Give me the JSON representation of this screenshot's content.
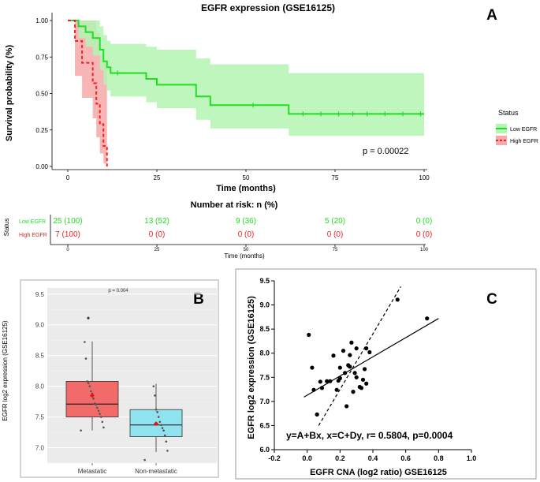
{
  "colors": {
    "low": "#22dd22",
    "low_fill": "#b3f5b3",
    "high": "#ee2222",
    "high_fill": "#f7a8a8",
    "box_meta": "#f26b6b",
    "box_nonmeta": "#8fe3ee",
    "mean_marker": "#ee1111"
  },
  "chart_data": [
    {
      "panel": "A",
      "type": "line",
      "subtype": "kaplan-meier",
      "title": "EGFR expression (GSE16125)",
      "xlabel": "Time (months)",
      "ylabel": "Survival probability (%)",
      "xlim": [
        0,
        100
      ],
      "ylim": [
        0,
        1
      ],
      "xticks": [
        "0",
        "25",
        "50",
        "75",
        "100"
      ],
      "yticks": [
        "0.00",
        "0.25",
        "0.50",
        "0.75",
        "1.00"
      ],
      "legend_title": "Status",
      "pvalue": "p = 0.00022",
      "series": [
        {
          "name": "Low EGFR",
          "color_key": "low",
          "steps": [
            [
              0,
              1.0
            ],
            [
              3,
              0.96
            ],
            [
              5,
              0.92
            ],
            [
              7,
              0.88
            ],
            [
              9,
              0.8
            ],
            [
              10,
              0.72
            ],
            [
              11,
              0.68
            ],
            [
              12,
              0.64
            ],
            [
              22,
              0.6
            ],
            [
              25,
              0.56
            ],
            [
              36,
              0.48
            ],
            [
              40,
              0.42
            ],
            [
              62,
              0.36
            ],
            [
              100,
              0.36
            ]
          ],
          "ci_upper": [
            [
              0,
              1.0
            ],
            [
              3,
              1.0
            ],
            [
              5,
              1.0
            ],
            [
              7,
              1.0
            ],
            [
              9,
              0.96
            ],
            [
              10,
              0.9
            ],
            [
              11,
              0.86
            ],
            [
              12,
              0.84
            ],
            [
              22,
              0.82
            ],
            [
              25,
              0.8
            ],
            [
              36,
              0.74
            ],
            [
              40,
              0.7
            ],
            [
              62,
              0.64
            ],
            [
              100,
              0.64
            ]
          ],
          "ci_lower": [
            [
              0,
              1.0
            ],
            [
              3,
              0.88
            ],
            [
              5,
              0.82
            ],
            [
              7,
              0.76
            ],
            [
              9,
              0.66
            ],
            [
              10,
              0.56
            ],
            [
              11,
              0.52
            ],
            [
              12,
              0.48
            ],
            [
              22,
              0.44
            ],
            [
              25,
              0.4
            ],
            [
              36,
              0.32
            ],
            [
              40,
              0.26
            ],
            [
              62,
              0.21
            ],
            [
              100,
              0.21
            ]
          ],
          "censor_times": [
            14,
            52,
            66,
            71,
            76,
            80,
            84,
            89,
            94,
            99
          ]
        },
        {
          "name": "High EGFR",
          "color_key": "high",
          "steps": [
            [
              0,
              1.0
            ],
            [
              2,
              0.86
            ],
            [
              4,
              0.71
            ],
            [
              7,
              0.57
            ],
            [
              8,
              0.43
            ],
            [
              9,
              0.29
            ],
            [
              10,
              0.14
            ],
            [
              11,
              0.0
            ]
          ],
          "ci_upper": [
            [
              0,
              1.0
            ],
            [
              2,
              1.0
            ],
            [
              4,
              1.0
            ],
            [
              7,
              1.0
            ],
            [
              8,
              0.91
            ],
            [
              9,
              0.76
            ],
            [
              10,
              0.71
            ],
            [
              11,
              0.71
            ]
          ],
          "ci_lower": [
            [
              0,
              1.0
            ],
            [
              2,
              0.62
            ],
            [
              4,
              0.47
            ],
            [
              7,
              0.33
            ],
            [
              8,
              0.2
            ],
            [
              9,
              0.09
            ],
            [
              10,
              0.02
            ],
            [
              11,
              0.0
            ]
          ],
          "censor_times": []
        }
      ]
    },
    {
      "panel": "A-risk",
      "type": "table",
      "title": "Number at risk: n (%)",
      "ylabel": "Status",
      "xlabel": "Time (months)",
      "times": [
        "0",
        "25",
        "50",
        "75",
        "100"
      ],
      "rows": [
        {
          "label": "Low EGFR",
          "color_key": "low",
          "values": [
            "25 (100)",
            "13 (52)",
            "9 (36)",
            "5 (20)",
            "0 (0)"
          ]
        },
        {
          "label": "High EGFR",
          "color_key": "high",
          "values": [
            "7 (100)",
            "0 (0)",
            "0 (0)",
            "0 (0)",
            "0 (0)"
          ]
        }
      ]
    },
    {
      "panel": "B",
      "type": "box",
      "ylabel": "EGFR log2 expression (GSE16125)",
      "pvalue": "p = 0.004",
      "ylim": [
        6.75,
        9.6
      ],
      "yticks": [
        "7.0",
        "7.5",
        "8.0",
        "8.5",
        "9.0",
        "9.5"
      ],
      "groups": [
        {
          "name": "Metastatic",
          "color_key": "box_meta",
          "q1": 7.5,
          "median": 7.71,
          "q3": 8.08,
          "whisker_low": 7.28,
          "whisker_high": 8.73,
          "mean": 7.85,
          "outliers": [
            9.11
          ],
          "points": [
            7.28,
            7.33,
            7.42,
            7.5,
            7.55,
            7.6,
            7.65,
            7.7,
            7.72,
            7.8,
            7.88,
            7.92,
            8.0,
            8.05,
            8.08,
            8.45,
            8.72
          ]
        },
        {
          "name": "Non-metastatic",
          "color_key": "box_nonmeta",
          "q1": 7.18,
          "median": 7.37,
          "q3": 7.62,
          "whisker_low": 6.93,
          "whisker_high": 8.04,
          "mean": 7.39,
          "outliers": [],
          "points": [
            6.8,
            6.95,
            7.1,
            7.2,
            7.28,
            7.32,
            7.37,
            7.42,
            7.5,
            7.58,
            7.62,
            7.85,
            8.0
          ]
        }
      ]
    },
    {
      "panel": "C",
      "type": "scatter",
      "xlabel": "EGFR CNA  (log2 ratio) GSE16125",
      "ylabel": "EGFR log2 expression (GSE16125)",
      "xlim": [
        -0.2,
        1.0
      ],
      "ylim": [
        6.0,
        9.5
      ],
      "xticks": [
        "-0.2",
        "0.0",
        "0.2",
        "0.4",
        "0.6",
        "0.8",
        "1.0"
      ],
      "yticks": [
        "6.0",
        "6.5",
        "7.0",
        "7.5",
        "8.0",
        "8.5",
        "9.0",
        "9.5"
      ],
      "annotation": "y=A+Bx, x=C+Dy, r= 0.5804, p=0.0004",
      "points": [
        [
          0.01,
          8.38
        ],
        [
          0.03,
          7.7
        ],
        [
          0.04,
          7.24
        ],
        [
          0.06,
          6.73
        ],
        [
          0.08,
          7.41
        ],
        [
          0.09,
          7.28
        ],
        [
          0.12,
          7.42
        ],
        [
          0.14,
          7.42
        ],
        [
          0.16,
          7.95
        ],
        [
          0.18,
          7.24
        ],
        [
          0.19,
          7.43
        ],
        [
          0.2,
          7.7
        ],
        [
          0.2,
          7.48
        ],
        [
          0.22,
          8.05
        ],
        [
          0.23,
          7.59
        ],
        [
          0.24,
          6.9
        ],
        [
          0.25,
          7.75
        ],
        [
          0.26,
          7.96
        ],
        [
          0.26,
          7.72
        ],
        [
          0.27,
          8.22
        ],
        [
          0.28,
          7.2
        ],
        [
          0.29,
          7.59
        ],
        [
          0.3,
          8.1
        ],
        [
          0.3,
          7.5
        ],
        [
          0.32,
          7.3
        ],
        [
          0.33,
          7.28
        ],
        [
          0.34,
          7.45
        ],
        [
          0.35,
          7.67
        ],
        [
          0.36,
          7.37
        ],
        [
          0.36,
          8.1
        ],
        [
          0.38,
          8.02
        ],
        [
          0.55,
          9.11
        ],
        [
          0.73,
          8.72
        ]
      ],
      "fit_lines": [
        {
          "name": "y on x",
          "style": "solid",
          "x": [
            -0.02,
            0.8
          ],
          "y": [
            7.09,
            8.72
          ]
        },
        {
          "name": "x on y",
          "style": "dashed",
          "x": [
            0.07,
            0.57
          ],
          "y": [
            6.5,
            9.38
          ]
        }
      ]
    }
  ],
  "labels": {
    "panel_a": "A",
    "panel_b": "B",
    "panel_c": "C",
    "legend_low": "Low EGFR",
    "legend_high": "High EGFR"
  }
}
